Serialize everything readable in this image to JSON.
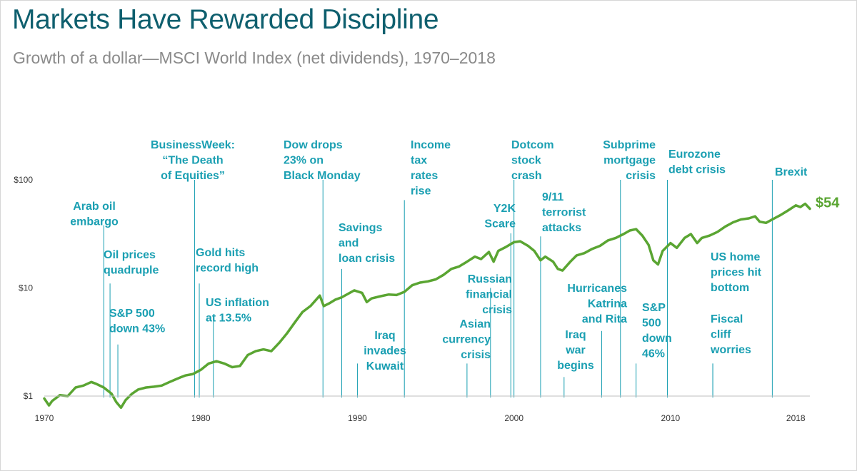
{
  "header": {
    "title": "Markets Have Rewarded Discipline",
    "subtitle": "Growth of a dollar—MSCI World Index (net dividends), 1970–2018"
  },
  "chart_data": {
    "type": "line",
    "title": "Markets Have Rewarded Discipline",
    "subtitle": "Growth of a dollar—MSCI World Index (net dividends), 1970–2018",
    "xlabel": "",
    "ylabel": "",
    "xlim": [
      1970,
      2018.9
    ],
    "ylim": [
      1,
      100
    ],
    "y_scale": "log",
    "grid": false,
    "line_color": "#5aa532",
    "event_color": "#1a9fb2",
    "x_ticks": [
      {
        "value": 1970,
        "label": "1970"
      },
      {
        "value": 1980,
        "label": "1980"
      },
      {
        "value": 1990,
        "label": "1990"
      },
      {
        "value": 2000,
        "label": "2000"
      },
      {
        "value": 2010,
        "label": "2010"
      },
      {
        "value": 2018,
        "label": "2018"
      }
    ],
    "y_ticks": [
      {
        "value": 1,
        "label": "$1"
      },
      {
        "value": 10,
        "label": "$10"
      },
      {
        "value": 100,
        "label": "$100"
      }
    ],
    "end_label": "$54",
    "series": [
      {
        "name": "MSCI World Index (net dividends)",
        "points": [
          [
            1970.0,
            0.95
          ],
          [
            1970.3,
            0.82
          ],
          [
            1970.5,
            0.9
          ],
          [
            1971.0,
            1.02
          ],
          [
            1971.5,
            1.0
          ],
          [
            1972.0,
            1.2
          ],
          [
            1972.5,
            1.25
          ],
          [
            1973.0,
            1.35
          ],
          [
            1973.3,
            1.3
          ],
          [
            1973.8,
            1.2
          ],
          [
            1974.3,
            1.05
          ],
          [
            1974.6,
            0.88
          ],
          [
            1974.9,
            0.78
          ],
          [
            1975.2,
            0.92
          ],
          [
            1975.6,
            1.05
          ],
          [
            1976.0,
            1.15
          ],
          [
            1976.5,
            1.2
          ],
          [
            1977.0,
            1.22
          ],
          [
            1977.5,
            1.25
          ],
          [
            1978.0,
            1.35
          ],
          [
            1978.5,
            1.45
          ],
          [
            1979.0,
            1.55
          ],
          [
            1979.5,
            1.6
          ],
          [
            1980.0,
            1.75
          ],
          [
            1980.5,
            2.0
          ],
          [
            1981.0,
            2.1
          ],
          [
            1981.5,
            2.0
          ],
          [
            1982.0,
            1.85
          ],
          [
            1982.5,
            1.9
          ],
          [
            1983.0,
            2.4
          ],
          [
            1983.5,
            2.6
          ],
          [
            1984.0,
            2.7
          ],
          [
            1984.5,
            2.6
          ],
          [
            1985.0,
            3.1
          ],
          [
            1985.5,
            3.8
          ],
          [
            1986.0,
            4.8
          ],
          [
            1986.5,
            6.0
          ],
          [
            1987.0,
            6.8
          ],
          [
            1987.6,
            8.5
          ],
          [
            1987.85,
            6.8
          ],
          [
            1988.2,
            7.2
          ],
          [
            1988.6,
            7.8
          ],
          [
            1989.0,
            8.2
          ],
          [
            1989.8,
            9.5
          ],
          [
            1990.3,
            9.0
          ],
          [
            1990.6,
            7.4
          ],
          [
            1990.9,
            8.0
          ],
          [
            1991.5,
            8.4
          ],
          [
            1992.0,
            8.7
          ],
          [
            1992.5,
            8.6
          ],
          [
            1993.0,
            9.2
          ],
          [
            1993.5,
            10.6
          ],
          [
            1994.0,
            11.2
          ],
          [
            1994.5,
            11.5
          ],
          [
            1995.0,
            12.0
          ],
          [
            1995.5,
            13.2
          ],
          [
            1996.0,
            15.0
          ],
          [
            1996.5,
            15.8
          ],
          [
            1997.0,
            17.5
          ],
          [
            1997.5,
            19.5
          ],
          [
            1997.9,
            18.5
          ],
          [
            1998.4,
            21.5
          ],
          [
            1998.7,
            17.5
          ],
          [
            1999.0,
            22.0
          ],
          [
            1999.5,
            24.0
          ],
          [
            2000.0,
            26.5
          ],
          [
            2000.4,
            27.0
          ],
          [
            2000.9,
            24.5
          ],
          [
            2001.3,
            22.0
          ],
          [
            2001.7,
            18.0
          ],
          [
            2002.0,
            19.5
          ],
          [
            2002.5,
            17.5
          ],
          [
            2002.8,
            15.0
          ],
          [
            2003.1,
            14.5
          ],
          [
            2003.6,
            17.5
          ],
          [
            2004.0,
            20.0
          ],
          [
            2004.5,
            21.0
          ],
          [
            2005.0,
            23.0
          ],
          [
            2005.5,
            24.5
          ],
          [
            2006.0,
            27.5
          ],
          [
            2006.5,
            29.0
          ],
          [
            2007.0,
            31.5
          ],
          [
            2007.4,
            34.0
          ],
          [
            2007.8,
            35.0
          ],
          [
            2008.2,
            30.5
          ],
          [
            2008.6,
            25.0
          ],
          [
            2008.9,
            18.0
          ],
          [
            2009.2,
            16.5
          ],
          [
            2009.5,
            22.0
          ],
          [
            2010.0,
            26.0
          ],
          [
            2010.4,
            23.5
          ],
          [
            2010.9,
            29.0
          ],
          [
            2011.3,
            31.5
          ],
          [
            2011.7,
            26.0
          ],
          [
            2012.0,
            29.0
          ],
          [
            2012.5,
            30.5
          ],
          [
            2013.0,
            33.0
          ],
          [
            2013.5,
            37.0
          ],
          [
            2014.0,
            40.5
          ],
          [
            2014.5,
            43.0
          ],
          [
            2015.0,
            44.0
          ],
          [
            2015.4,
            46.0
          ],
          [
            2015.7,
            41.0
          ],
          [
            2016.1,
            40.0
          ],
          [
            2016.5,
            43.0
          ],
          [
            2017.0,
            47.0
          ],
          [
            2017.5,
            52.0
          ],
          [
            2018.0,
            58.0
          ],
          [
            2018.3,
            56.0
          ],
          [
            2018.6,
            60.0
          ],
          [
            2018.9,
            54.0
          ]
        ]
      }
    ],
    "events": [
      {
        "x": 1973.8,
        "bottom": 0.97,
        "top": 38,
        "lines": [
          "Arab oil",
          "embargo"
        ],
        "align": "middle"
      },
      {
        "x": 1974.2,
        "bottom": 0.97,
        "top": 11,
        "lines": [
          "Oil prices",
          "quadruple"
        ],
        "align": "start"
      },
      {
        "x": 1974.7,
        "bottom": 0.97,
        "top": 3.0,
        "lines": [
          "S&P 500",
          "down 43%"
        ],
        "align": "start"
      },
      {
        "x": 1979.6,
        "bottom": 0.97,
        "top": 100,
        "lines": [
          "BusinessWeek:",
          "“The Death",
          "of Equities”"
        ],
        "align": "middle"
      },
      {
        "x": 1979.9,
        "bottom": 0.97,
        "top": 11,
        "lines": [
          "Gold hits",
          "record high"
        ],
        "align": "start"
      },
      {
        "x": 1980.8,
        "bottom": 0.97,
        "top": 5.5,
        "lines": [
          "US inflation",
          "at 13.5%"
        ],
        "align": "start"
      },
      {
        "x": 1987.8,
        "bottom": 0.97,
        "top": 100,
        "lines": [
          "Dow drops",
          "23% on",
          "Black Monday"
        ],
        "align": "start"
      },
      {
        "x": 1989.0,
        "bottom": 0.97,
        "top": 15,
        "lines": [
          "Savings",
          "and",
          "loan crisis"
        ],
        "align": "start"
      },
      {
        "x": 1990.0,
        "bottom": 0.97,
        "top": 2.0,
        "lines": [
          "Iraq",
          "invades",
          "Kuwait"
        ],
        "align": "middle"
      },
      {
        "x": 1993.0,
        "bottom": 0.97,
        "top": 65,
        "lines": [
          "Income",
          "tax",
          "rates",
          "rise"
        ],
        "align": "start"
      },
      {
        "x": 1997.0,
        "bottom": 0.97,
        "top": 2.0,
        "lines": [
          "Asian",
          "currency",
          "crisis"
        ],
        "align": "end"
      },
      {
        "x": 1998.5,
        "bottom": 0.97,
        "top": 10,
        "lines": [
          "Russian",
          "financial",
          "crisis"
        ],
        "align": "end"
      },
      {
        "x": 1999.8,
        "bottom": 0.97,
        "top": 32,
        "lines": [
          "Y2K",
          "Scare"
        ],
        "align": "end"
      },
      {
        "x": 2000.0,
        "bottom": 0.97,
        "top": 100,
        "lines": [
          "Dotcom",
          "stock",
          "crash"
        ],
        "align": "start"
      },
      {
        "x": 2001.7,
        "bottom": 0.97,
        "top": 30,
        "lines": [
          "9/11",
          "terrorist",
          "attacks"
        ],
        "align": "start"
      },
      {
        "x": 2003.2,
        "bottom": 0.97,
        "top": 1.5,
        "lines": [
          "Iraq",
          "war",
          "begins"
        ],
        "align": "middle"
      },
      {
        "x": 2005.6,
        "bottom": 0.97,
        "top": 4.0,
        "lines": [
          "Hurricanes",
          "Katrina",
          "and Rita"
        ],
        "align": "end"
      },
      {
        "x": 2006.8,
        "bottom": 0.97,
        "top": 100,
        "lines": [
          "Subprime",
          "mortgage",
          "crisis"
        ],
        "align": "end"
      },
      {
        "x": 2007.8,
        "bottom": 0.97,
        "top": 2.0,
        "lines": [
          "S&P",
          "500",
          "down",
          "46%"
        ],
        "align": "start"
      },
      {
        "x": 2009.8,
        "bottom": 0.97,
        "top": 100,
        "lines": [
          "Eurozone",
          "debt crisis"
        ],
        "align": "start"
      },
      {
        "x": 2012.7,
        "bottom": 0.97,
        "top": 2.0,
        "lines": [
          "US home",
          "prices hit",
          "bottom"
        ],
        "align": "start"
      },
      {
        "x": 2012.7,
        "bottom": 0.97,
        "top": 2.0,
        "lines": [
          "Fiscal",
          "cliff",
          "worries"
        ],
        "align": "start"
      },
      {
        "x": 2016.5,
        "bottom": 0.97,
        "top": 100,
        "lines": [
          "Brexit"
        ],
        "align": "start"
      }
    ]
  }
}
